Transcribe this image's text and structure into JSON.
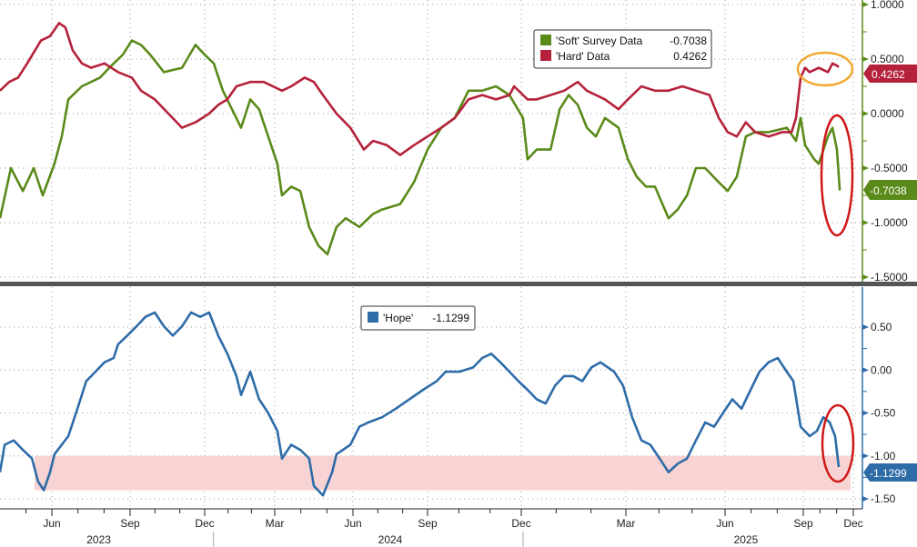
{
  "chart_data": [
    {
      "type": "line",
      "panel": "top",
      "ylim": [
        -1.5,
        1.0
      ],
      "yticks": [
        "1.0000",
        "0.5000",
        "0.0000",
        "-0.5000",
        "-1.0000",
        "-1.5000"
      ],
      "ytick_values": [
        1.0,
        0.5,
        0.0,
        -0.5,
        -1.0,
        -1.5
      ],
      "grid": true,
      "legend_placement": "top-right",
      "series": [
        {
          "name": "'Soft' Survey Data",
          "last": "-0.7038",
          "color": "#5a8a1a",
          "x": [
            -2,
            -1.58,
            -1.12,
            -0.7,
            -0.35,
            0.1,
            0.38,
            0.63,
            1.15,
            1.85,
            2.2,
            2.72,
            3.07,
            3.44,
            3.81,
            4.36,
            5.09,
            5.63,
            6.0,
            6.39,
            6.78,
            7.17,
            7.56,
            7.95,
            8.33,
            8.72,
            9.1,
            9.28,
            9.63,
            9.98,
            10.32,
            10.67,
            11.02,
            11.37,
            11.72,
            12.26,
            12.81,
            13.17,
            13.9,
            14.45,
            15.0,
            15.44,
            15.87,
            16.31,
            16.75,
            17.19,
            17.62,
            18.05,
            18.18,
            18.44,
            18.84,
            19.1,
            19.36,
            19.62,
            19.88,
            20.14,
            20.4,
            20.79,
            21.06,
            21.33,
            21.61,
            21.88,
            22.29,
            22.57,
            22.85,
            23.12,
            23.4,
            23.81,
            24.1,
            24.45,
            24.8,
            25.15,
            25.67,
            26.37,
            26.72,
            26.9,
            27.11,
            27.66,
            27.93,
            28.48,
            28.75,
            29.02,
            29.19
          ],
          "y": [
            -0.96,
            -0.5,
            -0.71,
            -0.5,
            -0.75,
            -0.46,
            -0.21,
            0.13,
            0.25,
            0.33,
            0.42,
            0.54,
            0.67,
            0.63,
            0.54,
            0.38,
            0.42,
            0.63,
            0.54,
            0.46,
            0.21,
            0.04,
            -0.13,
            0.13,
            0.04,
            -0.21,
            -0.46,
            -0.75,
            -0.67,
            -0.71,
            -1.04,
            -1.21,
            -1.29,
            -1.04,
            -0.96,
            -1.04,
            -0.92,
            -0.88,
            -0.83,
            -0.63,
            -0.33,
            -0.13,
            -0.04,
            0.21,
            0.21,
            0.25,
            0.17,
            -0.04,
            -0.42,
            -0.33,
            -0.33,
            0.04,
            0.17,
            0.08,
            -0.13,
            -0.21,
            -0.04,
            -0.13,
            -0.42,
            -0.58,
            -0.67,
            -0.67,
            -0.96,
            -0.88,
            -0.75,
            -0.5,
            -0.5,
            -0.63,
            -0.71,
            -0.58,
            -0.21,
            -0.17,
            -0.17,
            -0.13,
            -0.25,
            -0.04,
            -0.29,
            -0.42,
            -0.46,
            -0.21,
            -0.13,
            -0.33,
            -0.7038
          ]
        },
        {
          "name": "'Hard' Data",
          "last": "0.4262",
          "color": "#b5213a",
          "x": [
            -2,
            -1.65,
            -1.3,
            -0.95,
            -0.42,
            -0.07,
            0.28,
            0.52,
            0.8,
            1.15,
            1.5,
            2.02,
            2.54,
            3.07,
            3.44,
            3.99,
            4.54,
            5.09,
            5.63,
            6.19,
            6.58,
            6.97,
            7.36,
            7.95,
            8.53,
            9.28,
            9.63,
            10.15,
            10.5,
            10.85,
            11.37,
            11.9,
            12.44,
            12.81,
            13.36,
            13.9,
            14.45,
            15.0,
            15.44,
            15.87,
            16.31,
            16.75,
            17.19,
            17.62,
            17.77,
            18.18,
            18.44,
            18.84,
            19.23,
            19.62,
            19.88,
            20.14,
            20.4,
            20.79,
            21.06,
            21.47,
            21.88,
            22.29,
            22.71,
            23.12,
            23.53,
            23.81,
            24.1,
            24.45,
            24.8,
            25.15,
            25.67,
            26.2,
            26.55,
            26.72,
            26.9,
            27.11,
            27.38,
            27.93,
            28.48,
            28.75,
            29.02,
            29.13
          ],
          "y": [
            0.21,
            0.29,
            0.33,
            0.46,
            0.67,
            0.71,
            0.83,
            0.79,
            0.58,
            0.46,
            0.42,
            0.46,
            0.38,
            0.33,
            0.21,
            0.13,
            0.0,
            -0.13,
            -0.08,
            0.0,
            0.08,
            0.13,
            0.25,
            0.29,
            0.29,
            0.21,
            0.25,
            0.33,
            0.29,
            0.17,
            0.0,
            -0.13,
            -0.33,
            -0.25,
            -0.29,
            -0.38,
            -0.29,
            -0.21,
            -0.13,
            -0.04,
            0.13,
            0.17,
            0.13,
            0.17,
            0.25,
            0.13,
            0.13,
            0.17,
            0.21,
            0.29,
            0.21,
            0.17,
            0.13,
            0.04,
            0.13,
            0.25,
            0.21,
            0.21,
            0.25,
            0.21,
            0.17,
            -0.04,
            -0.17,
            -0.21,
            -0.08,
            -0.17,
            -0.21,
            -0.17,
            -0.17,
            -0.04,
            0.33,
            0.42,
            0.38,
            0.42,
            0.38,
            0.46,
            0.44,
            0.4262
          ]
        }
      ]
    },
    {
      "type": "line",
      "panel": "bottom",
      "ylim": [
        -1.6,
        0.95
      ],
      "yticks": [
        "0.50",
        "0.00",
        "-0.50",
        "-1.00",
        "-1.50"
      ],
      "ytick_values": [
        0.5,
        0.0,
        -0.5,
        -1.0,
        -1.5
      ],
      "shaded_band": [
        -1.4,
        -1.0
      ],
      "shaded_color": "#f8d3d3",
      "grid": true,
      "legend_placement": "top-center",
      "series": [
        {
          "name": "'Hope'",
          "last": "-1.1299",
          "color": "#2e6ca8",
          "x": [
            -2,
            -1.82,
            -1.47,
            -1.12,
            -0.77,
            -0.53,
            -0.31,
            -0.07,
            0.1,
            0.63,
            0.98,
            1.32,
            1.67,
            2.02,
            2.37,
            2.54,
            2.89,
            3.26,
            3.62,
            3.99,
            4.36,
            4.72,
            5.09,
            5.45,
            5.82,
            6.19,
            6.58,
            6.97,
            7.36,
            7.56,
            7.95,
            8.33,
            8.72,
            9.1,
            9.28,
            9.63,
            9.98,
            10.32,
            10.5,
            10.85,
            11.2,
            11.37,
            11.9,
            12.26,
            12.62,
            13.17,
            13.72,
            14.27,
            14.82,
            15.29,
            15.58,
            16.02,
            16.46,
            16.75,
            17.04,
            17.33,
            17.62,
            17.91,
            18.18,
            18.44,
            18.7,
            18.97,
            19.23,
            19.49,
            19.75,
            20.01,
            20.27,
            20.66,
            20.92,
            21.19,
            21.47,
            21.74,
            22.02,
            22.29,
            22.57,
            22.85,
            23.12,
            23.4,
            23.67,
            23.94,
            24.28,
            24.63,
            24.98,
            25.32,
            25.67,
            26.02,
            26.37,
            26.62,
            26.9,
            27.38,
            27.82,
            28.2,
            28.58,
            28.91,
            29.13
          ],
          "y": [
            -1.19,
            -0.87,
            -0.82,
            -0.93,
            -1.03,
            -1.3,
            -1.4,
            -1.19,
            -0.98,
            -0.77,
            -0.45,
            -0.13,
            -0.02,
            0.09,
            0.14,
            0.3,
            0.4,
            0.51,
            0.62,
            0.67,
            0.51,
            0.4,
            0.51,
            0.67,
            0.62,
            0.67,
            0.4,
            0.19,
            -0.07,
            -0.29,
            -0.02,
            -0.34,
            -0.5,
            -0.71,
            -1.03,
            -0.87,
            -0.93,
            -1.03,
            -1.35,
            -1.46,
            -1.19,
            -0.98,
            -0.87,
            -0.66,
            -0.61,
            -0.55,
            -0.45,
            -0.34,
            -0.23,
            -0.13,
            -0.02,
            -0.02,
            0.03,
            0.14,
            0.19,
            0.09,
            -0.02,
            -0.13,
            -0.23,
            -0.34,
            -0.39,
            -0.18,
            -0.07,
            -0.07,
            -0.13,
            0.03,
            0.09,
            -0.02,
            -0.18,
            -0.55,
            -0.82,
            -0.87,
            -1.03,
            -1.19,
            -1.09,
            -1.03,
            -0.82,
            -0.61,
            -0.66,
            -0.5,
            -0.34,
            -0.45,
            -0.23,
            -0.02,
            0.09,
            0.14,
            -0.02,
            -0.13,
            -0.66,
            -0.77,
            -0.71,
            -0.55,
            -0.61,
            -0.77,
            -1.1299
          ]
        }
      ]
    }
  ],
  "x_axis": {
    "unit": "months since Jun 2023",
    "ticks": [
      {
        "m": 0,
        "label": "Jun"
      },
      {
        "m": 3,
        "label": "Sep"
      },
      {
        "m": 6,
        "label": "Dec"
      },
      {
        "m": 9,
        "label": "Mar"
      },
      {
        "m": 12,
        "label": "Jun"
      },
      {
        "m": 15,
        "label": "Sep"
      },
      {
        "m": 18,
        "label": "Dec"
      },
      {
        "m": 21,
        "label": "Mar"
      },
      {
        "m": 24,
        "label": "Jun"
      },
      {
        "m": 27,
        "label": "Sep"
      },
      {
        "m": 30,
        "label": "Dec"
      }
    ],
    "years": [
      "2023",
      "2024",
      "2025"
    ]
  },
  "colors": {
    "soft": "#5a8a1a",
    "hard": "#b5213a",
    "hope": "#2e6ca8",
    "highlight_orange": "#f0a830",
    "highlight_red": "#d01818"
  }
}
